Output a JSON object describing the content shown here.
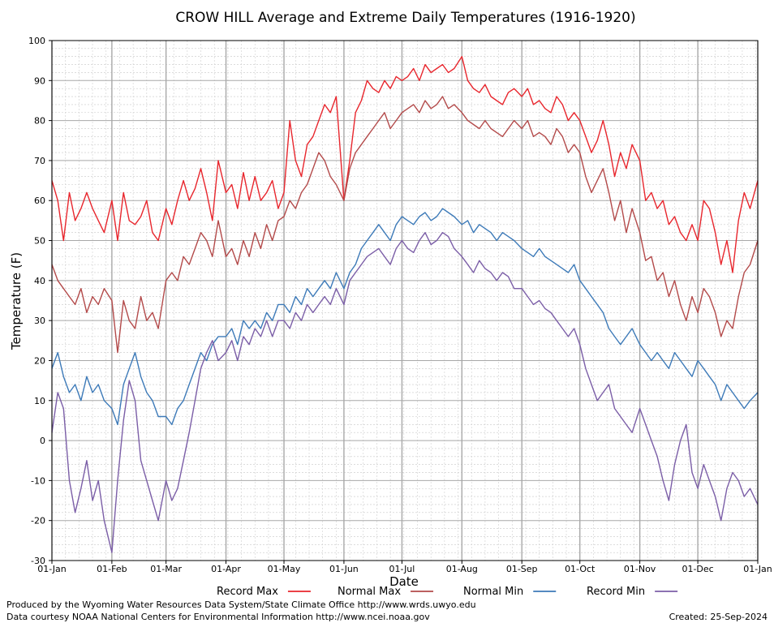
{
  "footer": {
    "produced_by": "Produced by the Wyoming Water Resources Data System/State Climate Office http://www.wrds.uwyo.edu",
    "data_courtesy": "Data courtesy NOAA National Centers for Environmental Information http://www.ncei.noaa.gov",
    "created": "Created:  25-Sep-2024"
  },
  "chart_data": {
    "type": "line",
    "title": "CROW HILL Average and Extreme Daily Temperatures (1916-1920)",
    "xlabel": "Date",
    "ylabel": "Temperature (F)",
    "ylim": [
      -30,
      100
    ],
    "y_ticks": [
      -30,
      -20,
      -10,
      0,
      10,
      20,
      30,
      40,
      50,
      60,
      70,
      80,
      90,
      100
    ],
    "x_day_range": [
      1,
      366
    ],
    "x_ticks": [
      {
        "label": "01-Jan",
        "day": 1
      },
      {
        "label": "01-Feb",
        "day": 32
      },
      {
        "label": "01-Mar",
        "day": 60
      },
      {
        "label": "01-Apr",
        "day": 91
      },
      {
        "label": "01-May",
        "day": 121
      },
      {
        "label": "01-Jun",
        "day": 152
      },
      {
        "label": "01-Jul",
        "day": 182
      },
      {
        "label": "01-Aug",
        "day": 213
      },
      {
        "label": "01-Sep",
        "day": 244
      },
      {
        "label": "01-Oct",
        "day": 274
      },
      {
        "label": "01-Nov",
        "day": 305
      },
      {
        "label": "01-Dec",
        "day": 335
      },
      {
        "label": "01-Jan",
        "day": 366
      }
    ],
    "grid": true,
    "legend_position": "bottom",
    "series": [
      {
        "name": "Record Max",
        "color": "#e8262d",
        "x": [
          1,
          4,
          7,
          10,
          13,
          16,
          19,
          22,
          25,
          28,
          32,
          35,
          38,
          41,
          44,
          47,
          50,
          53,
          56,
          60,
          63,
          66,
          69,
          72,
          75,
          78,
          81,
          84,
          87,
          91,
          94,
          97,
          100,
          103,
          106,
          109,
          112,
          115,
          118,
          121,
          124,
          127,
          130,
          133,
          136,
          139,
          142,
          145,
          148,
          152,
          155,
          158,
          161,
          164,
          167,
          170,
          173,
          176,
          179,
          182,
          185,
          188,
          191,
          194,
          197,
          200,
          203,
          206,
          209,
          213,
          216,
          219,
          222,
          225,
          228,
          231,
          234,
          237,
          240,
          244,
          247,
          250,
          253,
          256,
          259,
          262,
          265,
          268,
          271,
          274,
          277,
          280,
          283,
          286,
          289,
          292,
          295,
          298,
          301,
          305,
          308,
          311,
          314,
          317,
          320,
          323,
          326,
          329,
          332,
          335,
          338,
          341,
          344,
          347,
          350,
          353,
          356,
          359,
          362,
          366
        ],
        "values": [
          65,
          60,
          50,
          62,
          55,
          58,
          62,
          58,
          55,
          52,
          60,
          50,
          62,
          55,
          54,
          56,
          60,
          52,
          50,
          58,
          54,
          60,
          65,
          60,
          63,
          68,
          62,
          55,
          70,
          62,
          64,
          58,
          67,
          60,
          66,
          60,
          62,
          65,
          58,
          62,
          80,
          70,
          66,
          74,
          76,
          80,
          84,
          82,
          86,
          60,
          70,
          82,
          85,
          90,
          88,
          87,
          90,
          88,
          91,
          90,
          91,
          93,
          90,
          94,
          92,
          93,
          94,
          92,
          93,
          96,
          90,
          88,
          87,
          89,
          86,
          85,
          84,
          87,
          88,
          86,
          88,
          84,
          85,
          83,
          82,
          86,
          84,
          80,
          82,
          80,
          76,
          72,
          75,
          80,
          74,
          66,
          72,
          68,
          74,
          70,
          60,
          62,
          58,
          60,
          54,
          56,
          52,
          50,
          54,
          50,
          60,
          58,
          52,
          44,
          50,
          42,
          55,
          62,
          58,
          65
        ]
      },
      {
        "name": "Normal Max",
        "color": "#b34a4a",
        "x": [
          1,
          4,
          7,
          10,
          13,
          16,
          19,
          22,
          25,
          28,
          32,
          35,
          38,
          41,
          44,
          47,
          50,
          53,
          56,
          60,
          63,
          66,
          69,
          72,
          75,
          78,
          81,
          84,
          87,
          91,
          94,
          97,
          100,
          103,
          106,
          109,
          112,
          115,
          118,
          121,
          124,
          127,
          130,
          133,
          136,
          139,
          142,
          145,
          148,
          152,
          155,
          158,
          161,
          164,
          167,
          170,
          173,
          176,
          179,
          182,
          185,
          188,
          191,
          194,
          197,
          200,
          203,
          206,
          209,
          213,
          216,
          219,
          222,
          225,
          228,
          231,
          234,
          237,
          240,
          244,
          247,
          250,
          253,
          256,
          259,
          262,
          265,
          268,
          271,
          274,
          277,
          280,
          283,
          286,
          289,
          292,
          295,
          298,
          301,
          305,
          308,
          311,
          314,
          317,
          320,
          323,
          326,
          329,
          332,
          335,
          338,
          341,
          344,
          347,
          350,
          353,
          356,
          359,
          362,
          366
        ],
        "values": [
          44,
          40,
          38,
          36,
          34,
          38,
          32,
          36,
          34,
          38,
          35,
          22,
          35,
          30,
          28,
          36,
          30,
          32,
          28,
          40,
          42,
          40,
          46,
          44,
          48,
          52,
          50,
          46,
          55,
          46,
          48,
          44,
          50,
          46,
          52,
          48,
          54,
          50,
          55,
          56,
          60,
          58,
          62,
          64,
          68,
          72,
          70,
          66,
          64,
          60,
          68,
          72,
          74,
          76,
          78,
          80,
          82,
          78,
          80,
          82,
          83,
          84,
          82,
          85,
          83,
          84,
          86,
          83,
          84,
          82,
          80,
          79,
          78,
          80,
          78,
          77,
          76,
          78,
          80,
          78,
          80,
          76,
          77,
          76,
          74,
          78,
          76,
          72,
          74,
          72,
          66,
          62,
          65,
          68,
          62,
          55,
          60,
          52,
          58,
          52,
          45,
          46,
          40,
          42,
          36,
          40,
          34,
          30,
          36,
          32,
          38,
          36,
          32,
          26,
          30,
          28,
          36,
          42,
          44,
          50
        ]
      },
      {
        "name": "Normal Min",
        "color": "#3d7ab8",
        "x": [
          1,
          4,
          7,
          10,
          13,
          16,
          19,
          22,
          25,
          28,
          32,
          35,
          38,
          41,
          44,
          47,
          50,
          53,
          56,
          60,
          63,
          66,
          69,
          72,
          75,
          78,
          81,
          84,
          87,
          91,
          94,
          97,
          100,
          103,
          106,
          109,
          112,
          115,
          118,
          121,
          124,
          127,
          130,
          133,
          136,
          139,
          142,
          145,
          148,
          152,
          155,
          158,
          161,
          164,
          167,
          170,
          173,
          176,
          179,
          182,
          185,
          188,
          191,
          194,
          197,
          200,
          203,
          206,
          209,
          213,
          216,
          219,
          222,
          225,
          228,
          231,
          234,
          237,
          240,
          244,
          247,
          250,
          253,
          256,
          259,
          262,
          265,
          268,
          271,
          274,
          277,
          280,
          283,
          286,
          289,
          292,
          295,
          298,
          301,
          305,
          308,
          311,
          314,
          317,
          320,
          323,
          326,
          329,
          332,
          335,
          338,
          341,
          344,
          347,
          350,
          353,
          356,
          359,
          362,
          366
        ],
        "values": [
          18,
          22,
          16,
          12,
          14,
          10,
          16,
          12,
          14,
          10,
          8,
          4,
          14,
          18,
          22,
          16,
          12,
          10,
          6,
          6,
          4,
          8,
          10,
          14,
          18,
          22,
          20,
          24,
          26,
          26,
          28,
          24,
          30,
          28,
          30,
          28,
          32,
          30,
          34,
          34,
          32,
          36,
          34,
          38,
          36,
          38,
          40,
          38,
          42,
          38,
          42,
          44,
          48,
          50,
          52,
          54,
          52,
          50,
          54,
          56,
          55,
          54,
          56,
          57,
          55,
          56,
          58,
          57,
          56,
          54,
          55,
          52,
          54,
          53,
          52,
          50,
          52,
          51,
          50,
          48,
          47,
          46,
          48,
          46,
          45,
          44,
          43,
          42,
          44,
          40,
          38,
          36,
          34,
          32,
          28,
          26,
          24,
          26,
          28,
          24,
          22,
          20,
          22,
          20,
          18,
          22,
          20,
          18,
          16,
          20,
          18,
          16,
          14,
          10,
          14,
          12,
          10,
          8,
          10,
          12
        ]
      },
      {
        "name": "Record Min",
        "color": "#7b5ea7",
        "x": [
          1,
          4,
          7,
          10,
          13,
          16,
          19,
          22,
          25,
          28,
          32,
          35,
          38,
          41,
          44,
          47,
          50,
          53,
          56,
          60,
          63,
          66,
          69,
          72,
          75,
          78,
          81,
          84,
          87,
          91,
          94,
          97,
          100,
          103,
          106,
          109,
          112,
          115,
          118,
          121,
          124,
          127,
          130,
          133,
          136,
          139,
          142,
          145,
          148,
          152,
          155,
          158,
          161,
          164,
          167,
          170,
          173,
          176,
          179,
          182,
          185,
          188,
          191,
          194,
          197,
          200,
          203,
          206,
          209,
          213,
          216,
          219,
          222,
          225,
          228,
          231,
          234,
          237,
          240,
          244,
          247,
          250,
          253,
          256,
          259,
          262,
          265,
          268,
          271,
          274,
          277,
          280,
          283,
          286,
          289,
          292,
          295,
          298,
          301,
          305,
          308,
          311,
          314,
          317,
          320,
          323,
          326,
          329,
          332,
          335,
          338,
          341,
          344,
          347,
          350,
          353,
          356,
          359,
          362,
          366
        ],
        "values": [
          2,
          12,
          8,
          -10,
          -18,
          -12,
          -5,
          -15,
          -10,
          -20,
          -28,
          -10,
          5,
          15,
          10,
          -5,
          -10,
          -15,
          -20,
          -10,
          -15,
          -12,
          -5,
          2,
          10,
          18,
          22,
          25,
          20,
          22,
          25,
          20,
          26,
          24,
          28,
          26,
          30,
          26,
          30,
          30,
          28,
          32,
          30,
          34,
          32,
          34,
          36,
          34,
          38,
          34,
          40,
          42,
          44,
          46,
          47,
          48,
          46,
          44,
          48,
          50,
          48,
          47,
          50,
          52,
          49,
          50,
          52,
          51,
          48,
          46,
          44,
          42,
          45,
          43,
          42,
          40,
          42,
          41,
          38,
          38,
          36,
          34,
          35,
          33,
          32,
          30,
          28,
          26,
          28,
          24,
          18,
          14,
          10,
          12,
          14,
          8,
          6,
          4,
          2,
          8,
          4,
          0,
          -4,
          -10,
          -15,
          -6,
          0,
          4,
          -8,
          -12,
          -6,
          -10,
          -14,
          -20,
          -12,
          -8,
          -10,
          -14,
          -12,
          -16
        ]
      }
    ]
  }
}
